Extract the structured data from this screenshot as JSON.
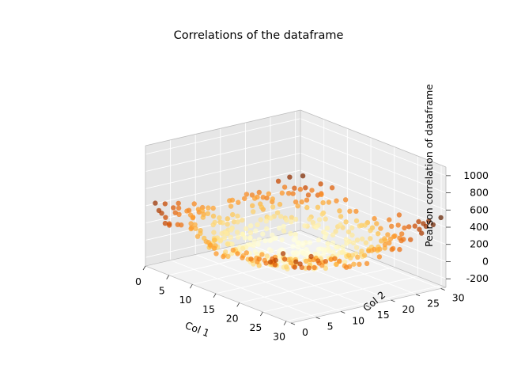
{
  "chart_data": {
    "type": "scatter3d",
    "title": "Correlations of the dataframe",
    "xlabel": "Col 1",
    "ylabel": "Col 2",
    "zlabel": "Pearson correlation of dataframe",
    "xlim": [
      0,
      31
    ],
    "ylim": [
      0,
      31
    ],
    "zlim": [
      -300,
      1100
    ],
    "x_ticks": [
      0,
      5,
      10,
      15,
      20,
      25,
      30
    ],
    "y_ticks": [
      0,
      5,
      10,
      15,
      20,
      25,
      30
    ],
    "z_ticks": [
      -200,
      0,
      200,
      400,
      600,
      800,
      1000
    ],
    "grid": true,
    "colormap": "YlOrBr",
    "grid_size": 31,
    "z_formula": "z = (x - 15)^2 + (y - 15)^2 + noise",
    "color_stops": [
      "#ffffe5",
      "#fff7bc",
      "#fee391",
      "#fec44f",
      "#fe9929",
      "#ec7014",
      "#cc4c02",
      "#993404",
      "#662506"
    ]
  }
}
